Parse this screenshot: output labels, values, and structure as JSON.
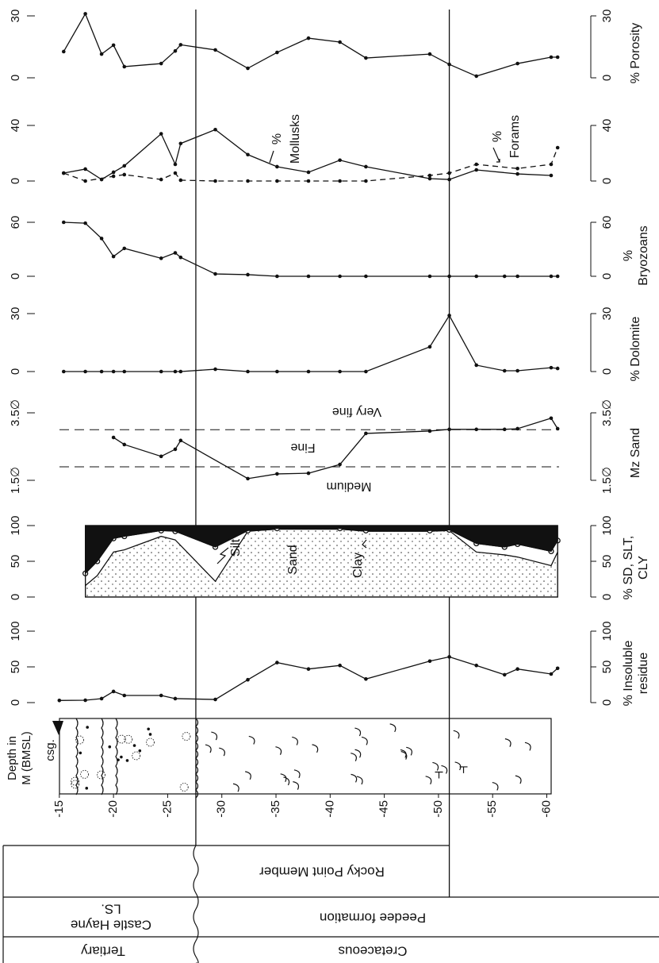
{
  "depth_axis": {
    "label": [
      "Depth in",
      "M (BMSL)"
    ],
    "xlim": [
      -14.5,
      -61.5
    ],
    "xticks": [
      -15,
      -20,
      -25,
      -30,
      -35,
      -40,
      -45,
      -50,
      -55,
      -60
    ],
    "boundaries": [
      -27.6,
      -51
    ]
  },
  "lithology": {
    "note": "csg."
  },
  "stratigraphy": {
    "member": "Rocky Point Member",
    "castle_hayne": [
      "Castle Hayne",
      "LS."
    ],
    "peedee": "Peedee formation",
    "tertiary": "Tertiary",
    "cretaceous": "Cretaceous"
  },
  "chart_data": [
    {
      "type": "line",
      "ylabel": [
        "% Porosity"
      ],
      "ylim": [
        0,
        30
      ],
      "yticks": [
        0,
        30
      ],
      "series": [
        {
          "x": [
            -15.4,
            -17.4,
            -18.9,
            -20,
            -21,
            -24.4,
            -25.7,
            -26.2,
            -29.4,
            -32.4,
            -35.1,
            -38,
            -40.9,
            -43.3,
            -49.2,
            -51,
            -53.5,
            -57.3,
            -60.4,
            -61
          ],
          "values": [
            12.7,
            31,
            11.5,
            15.8,
            5.4,
            6.9,
            13,
            16,
            13.5,
            4.6,
            12.3,
            19.2,
            17.3,
            9.6,
            11.5,
            6.5,
            0.8,
            6.9,
            10,
            10
          ],
          "color": "#111111",
          "style": "solid"
        }
      ]
    },
    {
      "type": "line",
      "ylabel": [],
      "ylim": [
        0,
        40
      ],
      "yticks": [
        0,
        40
      ],
      "series": [
        {
          "name": [
            "%",
            "Mollusks"
          ],
          "x": [
            -15.4,
            -17.4,
            -18.9,
            -20,
            -21,
            -24.4,
            -25.7,
            -26.2,
            -29.4,
            -32.4,
            -35.1,
            -38,
            -40.9,
            -43.3,
            -49.2,
            -51,
            -53.5,
            -57.3,
            -60.4
          ],
          "values": [
            5.7,
            8.6,
            1.1,
            6.3,
            10.9,
            34,
            12,
            27,
            37,
            19,
            10.3,
            6.3,
            15,
            10.3,
            1.7,
            1.1,
            8,
            5.1,
            4
          ],
          "color": "#111111",
          "style": "solid"
        },
        {
          "name": [
            "%",
            "Forams"
          ],
          "x": [
            -15.4,
            -17.4,
            -20,
            -21,
            -24.4,
            -25.7,
            -26.2,
            -29.4,
            -32.4,
            -35.1,
            -38,
            -40.9,
            -43.3,
            -49.2,
            -51,
            -53.5,
            -57.3,
            -60.4,
            -61
          ],
          "values": [
            5.7,
            0,
            3.4,
            4.6,
            1.1,
            5.7,
            0.6,
            0,
            0,
            0,
            0,
            0,
            0,
            4,
            5.7,
            12,
            9,
            12,
            24
          ],
          "color": "#111111",
          "style": "dashed"
        }
      ]
    },
    {
      "type": "line",
      "ylabel": [
        "%",
        "Bryozoans"
      ],
      "ylim": [
        0,
        60
      ],
      "yticks": [
        0,
        60
      ],
      "series": [
        {
          "x": [
            -15.4,
            -17.4,
            -18.9,
            -20,
            -21,
            -24.4,
            -25.7,
            -26.2,
            -29.4,
            -32.4,
            -35.1,
            -38,
            -40.9,
            -43.3,
            -49.2,
            -51,
            -53.5,
            -56.1,
            -57.3,
            -60.4,
            -61
          ],
          "values": [
            60,
            59,
            42,
            22,
            31,
            20,
            26,
            21,
            2.6,
            1.8,
            0,
            0,
            0,
            0,
            0,
            0,
            0,
            0,
            0,
            0,
            0
          ],
          "color": "#111111",
          "style": "solid"
        }
      ]
    },
    {
      "type": "line",
      "ylabel": [
        "% Dolomite"
      ],
      "ylim": [
        0,
        30
      ],
      "yticks": [
        0,
        30
      ],
      "series": [
        {
          "x": [
            -15.4,
            -17.4,
            -18.9,
            -20,
            -21,
            -24.4,
            -25.7,
            -26.2,
            -29.4,
            -32.4,
            -35.1,
            -38,
            -40.9,
            -43.3,
            -49.2,
            -51,
            -53.5,
            -56.1,
            -57.3,
            -60.4,
            -61
          ],
          "values": [
            0,
            0,
            0,
            0,
            0,
            0,
            0,
            0,
            1.2,
            0,
            0,
            0,
            0,
            0,
            12.8,
            29,
            3.3,
            0.4,
            0.4,
            2,
            1.6
          ],
          "color": "#111111",
          "style": "solid"
        }
      ]
    },
    {
      "type": "line",
      "ylabel": [
        "Mz Sand"
      ],
      "ylim": [
        1.5,
        3.5
      ],
      "yticks": [
        {
          "value": 1.5,
          "label": "1.5∅"
        },
        {
          "value": 3.5,
          "label": "3.5∅"
        }
      ],
      "reference_lines": [
        1.9,
        3.0
      ],
      "zone_labels": [
        "Very fine",
        "Fine",
        "Medium"
      ],
      "series": [
        {
          "x": [
            -20,
            -21,
            -24.4,
            -25.7,
            -26.2,
            -32.4,
            -35.1,
            -38,
            -40.9,
            -43.3,
            -49.2,
            -51,
            -53.5,
            -56.1,
            -57.3,
            -60.4,
            -61
          ],
          "values": [
            2.77,
            2.56,
            2.21,
            2.42,
            2.68,
            1.55,
            1.69,
            1.71,
            1.97,
            2.89,
            2.96,
            3.01,
            3.01,
            3.01,
            3.03,
            3.34,
            3.03
          ],
          "color": "#111111",
          "style": "solid"
        }
      ]
    },
    {
      "type": "stacked_area",
      "ylabel": [
        "% SD, SLT,",
        "CLY"
      ],
      "ylim": [
        0,
        100
      ],
      "yticks": [
        0,
        50,
        100
      ],
      "x": [
        -17.4,
        -18.5,
        -20,
        -21,
        -24.4,
        -25.7,
        -29.4,
        -32.4,
        -35.1,
        -40.9,
        -43.3,
        -49.2,
        -51,
        -53.5,
        -56.1,
        -57.3,
        -60.4,
        -61
      ],
      "series": [
        {
          "name": "Sand",
          "color": "#f4f4f4",
          "values": [
            16,
            30,
            63,
            66,
            85,
            80,
            22,
            92,
            95,
            95,
            92,
            92,
            93,
            63,
            59,
            56,
            44,
            63
          ]
        },
        {
          "name": "Silt",
          "color": "#ffffff",
          "values": [
            17,
            20,
            19,
            19,
            8,
            12,
            48,
            1,
            1,
            1,
            1,
            1,
            1,
            12,
            11,
            18,
            20,
            16
          ]
        },
        {
          "name": "Clay",
          "color": "#111111",
          "values": [
            67,
            50,
            18,
            15,
            7,
            8,
            30,
            7,
            4,
            4,
            7,
            7,
            6,
            25,
            30,
            26,
            36,
            21
          ]
        }
      ]
    },
    {
      "type": "line",
      "ylabel": [
        "% Insoluble",
        "residue"
      ],
      "ylim": [
        0,
        100
      ],
      "yticks": [
        0,
        50,
        100
      ],
      "series": [
        {
          "x": [
            -15,
            -17.4,
            -18.9,
            -20,
            -21,
            -24.4,
            -25.7,
            -29.4,
            -32.4,
            -35.1,
            -38,
            -40.9,
            -43.3,
            -49.2,
            -51,
            -53.5,
            -56.1,
            -57.3,
            -60.4,
            -61
          ],
          "values": [
            3,
            3.3,
            5.6,
            15.6,
            10,
            10,
            5.6,
            4.4,
            32,
            56,
            47,
            52,
            33,
            58,
            64,
            52,
            39,
            47,
            40,
            48
          ],
          "color": "#111111",
          "style": "solid"
        }
      ]
    }
  ]
}
